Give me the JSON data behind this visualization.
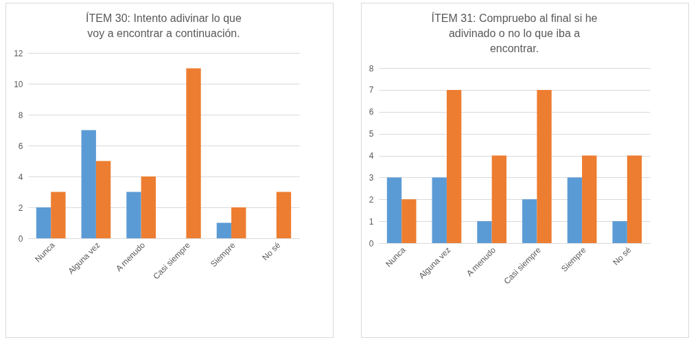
{
  "chart_data": [
    {
      "type": "bar",
      "title": "ÍTEM 30: Intento adivinar  lo que voy a encontrar  a continuación.",
      "categories": [
        "Nunca",
        "Alguna vez",
        "A menudo",
        "Casi siempre",
        "Siempre",
        "No sé"
      ],
      "series": [
        {
          "color": "#5b9bd5",
          "values": [
            2,
            7,
            3,
            null,
            1,
            null
          ]
        },
        {
          "color": "#ed7d31",
          "values": [
            3,
            5,
            4,
            11,
            2,
            3
          ]
        }
      ],
      "ylim": [
        0,
        12
      ],
      "yticks": [
        0,
        2,
        4,
        6,
        8,
        10,
        12
      ],
      "grid": "y",
      "legend": false
    },
    {
      "type": "bar",
      "title": "ÍTEM 31: Compruebo  al final si he adivinado  o no lo que iba a encontrar.",
      "categories": [
        "Nunca",
        "Alguna vez",
        "A menudo",
        "Casi siempre",
        "Siempre",
        "No sé"
      ],
      "series": [
        {
          "color": "#5b9bd5",
          "values": [
            3,
            3,
            1,
            2,
            3,
            1
          ]
        },
        {
          "color": "#ed7d31",
          "values": [
            2,
            7,
            4,
            7,
            4,
            4
          ]
        }
      ],
      "ylim": [
        0,
        8
      ],
      "yticks": [
        0,
        1,
        2,
        3,
        4,
        5,
        6,
        7,
        8
      ],
      "grid": "y",
      "legend": false
    }
  ]
}
